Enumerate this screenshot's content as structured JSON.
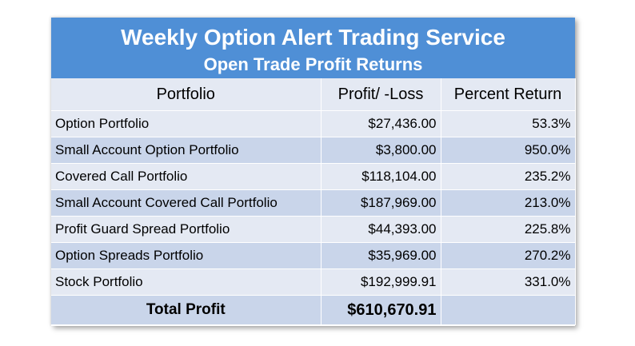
{
  "title": "Weekly Option Alert Trading Service",
  "subtitle": "Open Trade Profit Returns",
  "table": {
    "headers": [
      "Portfolio",
      "Profit/ -Loss",
      "Percent Return"
    ],
    "rows": [
      [
        "Option Portfolio",
        "$27,436.00",
        "53.3%"
      ],
      [
        "Small Account Option Portfolio",
        "$3,800.00",
        "950.0%"
      ],
      [
        "Covered Call Portfolio",
        "$118,104.00",
        "235.2%"
      ],
      [
        "Small Account Covered Call Portfolio",
        "$187,969.00",
        "213.0%"
      ],
      [
        "Profit Guard Spread Portfolio",
        "$44,393.00",
        "225.8%"
      ],
      [
        "Option Spreads Portfolio",
        "$35,969.00",
        "270.2%"
      ],
      [
        "Stock Portfolio",
        "$192,999.91",
        "331.0%"
      ]
    ],
    "total_label": "Total Profit",
    "total_value": "$610,670.91",
    "total_percent": ""
  },
  "colors": {
    "banner": "#4f8fd6",
    "row_light": "#e4e9f3",
    "row_dark": "#c9d5ea"
  }
}
